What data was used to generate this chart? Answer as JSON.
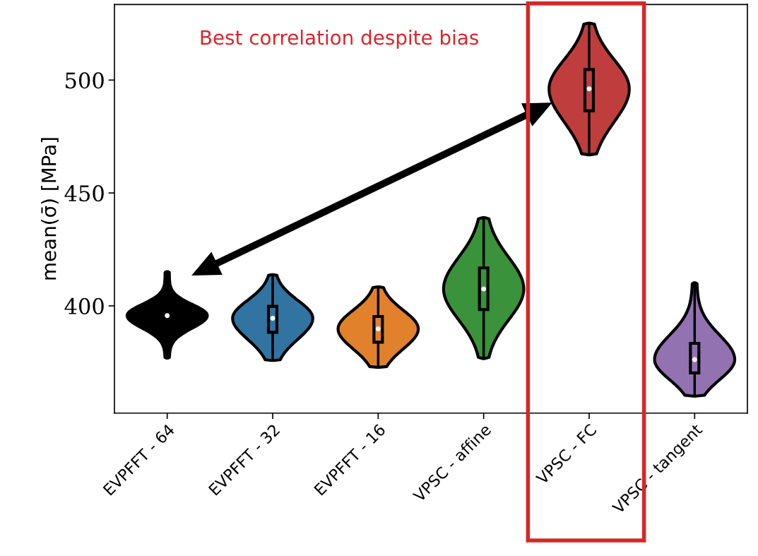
{
  "chart_data": {
    "type": "box",
    "ylabel": "mean(σ̄) [MPa]",
    "categories": [
      "EVPFFT - 64",
      "EVPFFT - 32",
      "EVPFFT - 16",
      "VPSC - affine",
      "VPSC - FC",
      "VPSC - tangent"
    ],
    "colors": [
      "#000000",
      "#3274a1",
      "#e1812c",
      "#3a923a",
      "#c03d3e",
      "#9372b2"
    ],
    "boxes": [
      {
        "low": 376.9,
        "q1": 392,
        "median": 395.7,
        "q3": 399,
        "high": 415.1
      },
      {
        "low": 375.8,
        "q1": 388.3,
        "median": 394.5,
        "q3": 399.8,
        "high": 413.8
      },
      {
        "low": 372.8,
        "q1": 383.9,
        "median": 389.8,
        "q3": 395.3,
        "high": 408.4
      },
      {
        "low": 376.7,
        "q1": 398.4,
        "median": 407.5,
        "q3": 416.8,
        "high": 439.1
      },
      {
        "low": 466.9,
        "q1": 486.4,
        "median": 496.1,
        "q3": 504.7,
        "high": 525.2
      },
      {
        "low": 360,
        "q1": 370.3,
        "median": 376.2,
        "q3": 383.4,
        "high": 410.2
      }
    ],
    "ylim": [
      352.5,
      533.5
    ],
    "yticks": [
      400,
      450,
      500
    ],
    "grid": false,
    "annotations": [
      "Best correlation despite bias"
    ]
  }
}
